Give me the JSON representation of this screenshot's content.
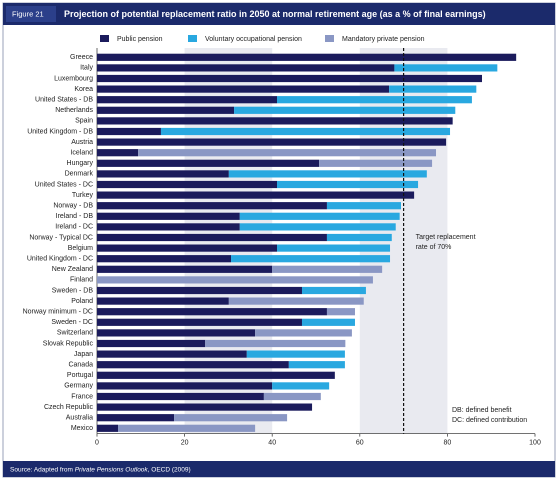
{
  "figure_label": "Figure 21",
  "chart_data": {
    "type": "stacked-barh",
    "title": "Projection of potential replacement ratio in 2050 at normal retirement age (as a % of final earnings)",
    "categories": [
      "Greece",
      "Italy",
      "Luxembourg",
      "Korea",
      "United States - DB",
      "Netherlands",
      "Spain",
      "United Kingdom - DB",
      "Austria",
      "Iceland",
      "Hungary",
      "Denmark",
      "United States - DC",
      "Turkey",
      "Norway - DB",
      "Ireland - DB",
      "Ireland - DC",
      "Norway - Typical DC",
      "Belgium",
      "United Kingdom - DC",
      "New Zealand",
      "Finland",
      "Sweden - DB",
      "Poland",
      "Norway minimum - DC",
      "Sweden - DC",
      "Switzerland",
      "Slovak Republic",
      "Japan",
      "Canada",
      "Portugal",
      "Germany",
      "France",
      "Czech Republic",
      "Australia",
      "Mexico"
    ],
    "series": [
      {
        "name": "Public pension",
        "color": "#1b1b5c",
        "values": [
          95.7,
          67.9,
          87.9,
          66.7,
          41.1,
          31.3,
          81.2,
          14.6,
          79.7,
          9.4,
          50.7,
          30.1,
          41.1,
          72.4,
          52.5,
          32.6,
          32.6,
          52.5,
          41.1,
          30.6,
          40.0,
          null,
          46.8,
          30.1,
          52.5,
          46.8,
          36.1,
          24.7,
          34.2,
          43.8,
          54.3,
          40.0,
          38.1,
          49.1,
          17.6,
          4.8
        ]
      },
      {
        "name": "Voluntary occupational pension",
        "color": "#29a8e0",
        "values": [
          null,
          23.5,
          null,
          19.9,
          44.5,
          50.5,
          null,
          66.0,
          null,
          null,
          null,
          45.2,
          32.2,
          null,
          16.9,
          36.5,
          35.6,
          14.8,
          25.8,
          36.3,
          null,
          null,
          14.6,
          null,
          null,
          12.1,
          null,
          null,
          22.4,
          12.8,
          null,
          13.0,
          null,
          null,
          null,
          null
        ]
      },
      {
        "name": "Mandatory private pension",
        "color": "#8a97c4",
        "values": [
          null,
          null,
          null,
          null,
          null,
          null,
          null,
          null,
          null,
          68.0,
          25.8,
          null,
          null,
          null,
          null,
          null,
          null,
          null,
          null,
          null,
          25.1,
          63.0,
          null,
          30.8,
          6.4,
          null,
          22.1,
          32.0,
          null,
          null,
          null,
          null,
          13.0,
          null,
          25.8,
          31.3
        ]
      }
    ],
    "xlim": [
      0,
      100
    ],
    "xticks": [
      0,
      20,
      40,
      60,
      80,
      100
    ],
    "target_line": 70,
    "target_annotation": [
      "Target replacement",
      "rate of 70%"
    ],
    "notes": [
      "DB: defined benefit",
      "DC: defined contribution"
    ]
  },
  "source": [
    "Source: Adapted from ",
    "Private Pensions Outlook",
    ", OECD (2009)"
  ]
}
